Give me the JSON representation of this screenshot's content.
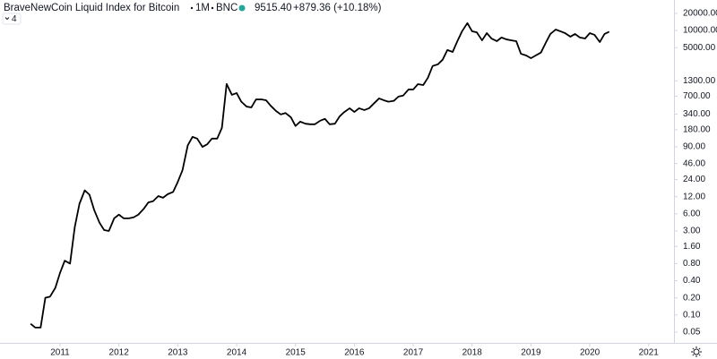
{
  "chart_data": {
    "type": "line",
    "title": "BraveNewCoin Liquid Index for Bitcoin",
    "interval": "1M",
    "exchange": "BNC",
    "last_price": "9515.40",
    "change": "+879.36 (+10.18%)",
    "indicator_count": "4",
    "yscale": "log",
    "grid": false,
    "xlim": [
      2009.98,
      2021.43
    ],
    "xticks": [
      2011,
      2012,
      2013,
      2014,
      2015,
      2016,
      2017,
      2018,
      2019,
      2020,
      2021
    ],
    "ylim": [
      0.0323,
      34400
    ],
    "yticks": [
      {
        "value": 20000,
        "label": "20000.00"
      },
      {
        "value": 10000,
        "label": "10000.00"
      },
      {
        "value": 5000,
        "label": "5000.00"
      },
      {
        "value": 1300,
        "label": "1300.00"
      },
      {
        "value": 700,
        "label": "700.00"
      },
      {
        "value": 340,
        "label": "340.00"
      },
      {
        "value": 180,
        "label": "180.00"
      },
      {
        "value": 90,
        "label": "90.00"
      },
      {
        "value": 46,
        "label": "46.00"
      },
      {
        "value": 24,
        "label": "24.00"
      },
      {
        "value": 12,
        "label": "12.00"
      },
      {
        "value": 6,
        "label": "6.00"
      },
      {
        "value": 3,
        "label": "3.00"
      },
      {
        "value": 1.6,
        "label": "1.60"
      },
      {
        "value": 0.8,
        "label": "0.80"
      },
      {
        "value": 0.4,
        "label": "0.40"
      },
      {
        "value": 0.2,
        "label": "0.20"
      },
      {
        "value": 0.1,
        "label": "0.10"
      },
      {
        "value": 0.05,
        "label": "0.05"
      }
    ],
    "x": [
      2010.5,
      2010.58,
      2010.67,
      2010.75,
      2010.83,
      2010.92,
      2011,
      2011.08,
      2011.17,
      2011.25,
      2011.33,
      2011.42,
      2011.5,
      2011.58,
      2011.67,
      2011.75,
      2011.83,
      2011.92,
      2012,
      2012.08,
      2012.17,
      2012.25,
      2012.33,
      2012.42,
      2012.5,
      2012.58,
      2012.67,
      2012.75,
      2012.83,
      2012.92,
      2013,
      2013.08,
      2013.17,
      2013.25,
      2013.33,
      2013.42,
      2013.5,
      2013.58,
      2013.67,
      2013.75,
      2013.83,
      2013.92,
      2014,
      2014.08,
      2014.17,
      2014.25,
      2014.33,
      2014.42,
      2014.5,
      2014.58,
      2014.67,
      2014.75,
      2014.83,
      2014.92,
      2015,
      2015.08,
      2015.17,
      2015.25,
      2015.33,
      2015.42,
      2015.5,
      2015.58,
      2015.67,
      2015.75,
      2015.83,
      2015.92,
      2016,
      2016.08,
      2016.17,
      2016.25,
      2016.33,
      2016.42,
      2016.5,
      2016.58,
      2016.67,
      2016.75,
      2016.83,
      2016.92,
      2017,
      2017.08,
      2017.17,
      2017.25,
      2017.33,
      2017.42,
      2017.5,
      2017.58,
      2017.67,
      2017.75,
      2017.83,
      2017.92,
      2018,
      2018.08,
      2018.17,
      2018.25,
      2018.33,
      2018.42,
      2018.5,
      2018.58,
      2018.67,
      2018.75,
      2018.83,
      2018.92,
      2019,
      2019.08,
      2019.17,
      2019.25,
      2019.33,
      2019.42,
      2019.5,
      2019.58,
      2019.67,
      2019.75,
      2019.83,
      2019.92,
      2020,
      2020.08,
      2020.17,
      2020.25,
      2020.33
    ],
    "series": [
      {
        "color": "#000000",
        "values": [
          0.07,
          0.06,
          0.06,
          0.2,
          0.21,
          0.3,
          0.55,
          0.9,
          0.8,
          3.5,
          9,
          15.5,
          13,
          7,
          4.2,
          3.1,
          3,
          5,
          5.8,
          5,
          5,
          5.2,
          5.8,
          7.3,
          9.5,
          10,
          12.3,
          11.5,
          13.3,
          14.5,
          21.8,
          35,
          96,
          135,
          126,
          90,
          100,
          126,
          126,
          195,
          1150,
          740,
          795,
          560,
          460,
          445,
          615,
          615,
          595,
          475,
          385,
          335,
          355,
          300,
          210,
          250,
          230,
          225,
          225,
          260,
          280,
          225,
          230,
          310,
          370,
          430,
          370,
          430,
          400,
          430,
          520,
          640,
          595,
          560,
          580,
          690,
          720,
          920,
          920,
          1140,
          1100,
          1480,
          2380,
          2550,
          3070,
          4540,
          4200,
          6490,
          9700,
          13500,
          9700,
          9300,
          6720,
          9000,
          7240,
          6500,
          7540,
          7000,
          6700,
          6500,
          3900,
          3640,
          3260,
          3640,
          4100,
          6040,
          8700,
          10400,
          9700,
          9000,
          7800,
          8700,
          7540,
          7240,
          9000,
          8400,
          6270,
          8700,
          9515.4
        ]
      }
    ]
  }
}
